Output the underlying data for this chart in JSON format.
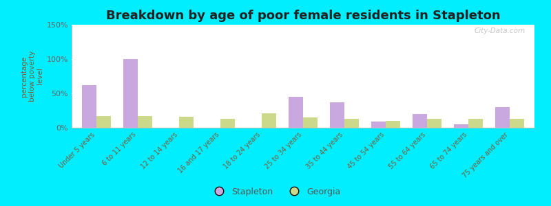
{
  "title": "Breakdown by age of poor female residents in Stapleton",
  "ylabel": "percentage\nbelow poverty\nlevel",
  "categories": [
    "Under 5 years",
    "6 to 11 years",
    "12 to 14 years",
    "16 and 17 years",
    "18 to 24 years",
    "25 to 34 years",
    "35 to 44 years",
    "45 to 54 years",
    "55 to 64 years",
    "65 to 74 years",
    "75 years and over"
  ],
  "stapleton": [
    62,
    100,
    0,
    0,
    0,
    45,
    37,
    9,
    20,
    5,
    30
  ],
  "georgia": [
    17,
    17,
    16,
    13,
    21,
    15,
    13,
    10,
    13,
    13,
    13
  ],
  "stapleton_color": "#c9a8e0",
  "georgia_color": "#cdd98a",
  "bg_top_color": "#e8f2da",
  "bg_bottom_color": "#f8fef0",
  "outer_bg": "#00eeff",
  "ylim": [
    0,
    150
  ],
  "yticks": [
    0,
    50,
    100,
    150
  ],
  "ytick_labels": [
    "0%",
    "50%",
    "100%",
    "150%"
  ],
  "bar_width": 0.35,
  "title_fontsize": 13,
  "legend_labels": [
    "Stapleton",
    "Georgia"
  ],
  "watermark": "City-Data.com",
  "tick_color": "#7a5c3a",
  "ylabel_color": "#7a5c3a",
  "ytick_color": "#666666"
}
